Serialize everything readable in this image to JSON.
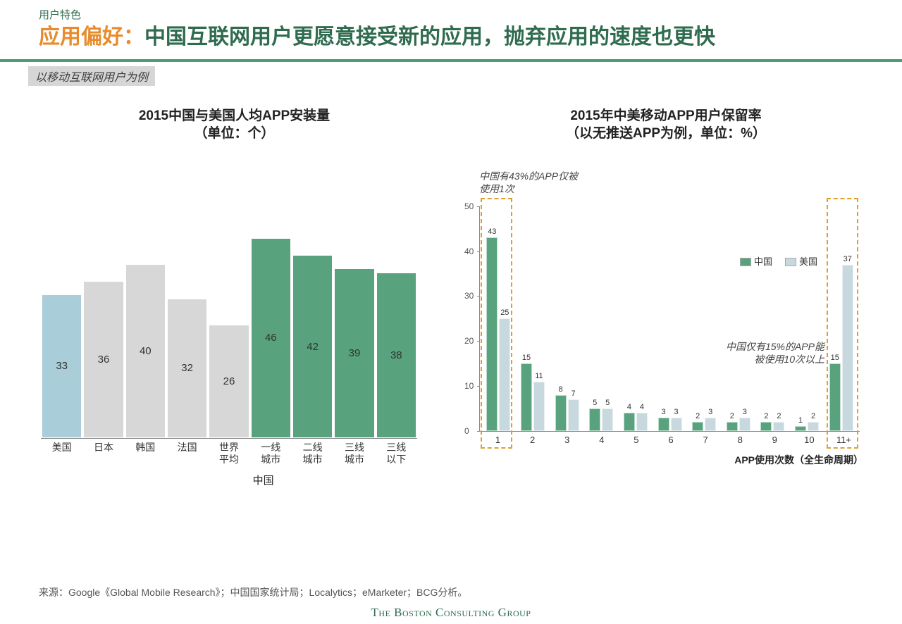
{
  "header": {
    "eyebrow": "用户特色",
    "title_prefix": "应用偏好：",
    "title_rest": "中国互联网用户更愿意接受新的应用，抛弃应用的速度也更快",
    "prefix_color": "#e78b2c",
    "rest_color": "#2f6b4f",
    "rule_color": "#4f9d77"
  },
  "subhead": "以移动互联网用户为例",
  "left_chart": {
    "title_l1": "2015中国与美国人均APP安装量",
    "title_l2": "（单位：个）",
    "ymax": 50,
    "categories": [
      "美国",
      "日本",
      "韩国",
      "法国",
      "世界\n平均",
      "一线\n城市",
      "二线\n城市",
      "三线\n城市",
      "三线\n以下"
    ],
    "values": [
      33,
      36,
      40,
      32,
      26,
      46,
      42,
      39,
      38
    ],
    "colors": [
      "#a9cdd9",
      "#d7d7d7",
      "#d7d7d7",
      "#d7d7d7",
      "#d7d7d7",
      "#58a27d",
      "#58a27d",
      "#58a27d",
      "#58a27d"
    ],
    "axis_label": "中国"
  },
  "right_chart": {
    "title_l1": "2015年中美移动APP用户保留率",
    "title_l2": "（以无推送APP为例，单位：%）",
    "ymax": 50,
    "ytick_step": 10,
    "yticks": [
      0,
      10,
      20,
      30,
      40,
      50
    ],
    "categories": [
      "1",
      "2",
      "3",
      "4",
      "5",
      "6",
      "7",
      "8",
      "9",
      "10",
      "11+"
    ],
    "series": [
      {
        "name": "中国",
        "color": "#58a27d",
        "values": [
          43,
          15,
          8,
          5,
          4,
          3,
          2,
          2,
          2,
          1,
          15
        ]
      },
      {
        "name": "美国",
        "color": "#c7d9de",
        "values": [
          25,
          11,
          7,
          5,
          4,
          3,
          3,
          3,
          2,
          2,
          37
        ]
      }
    ],
    "x_title": "APP使用次数（全生命周期）",
    "annot_top": "中国有43%的APP仅被\n使用1次",
    "annot_right": "中国仅有15%的APP能\n被使用10次以上",
    "highlight_color": "#e0a030"
  },
  "legend": {
    "china": "中国",
    "us": "美国"
  },
  "source": "来源：Google《Global Mobile Research》；中国国家统计局；Localytics；eMarketer；BCG分析。",
  "footer": "The Boston Consulting Group"
}
